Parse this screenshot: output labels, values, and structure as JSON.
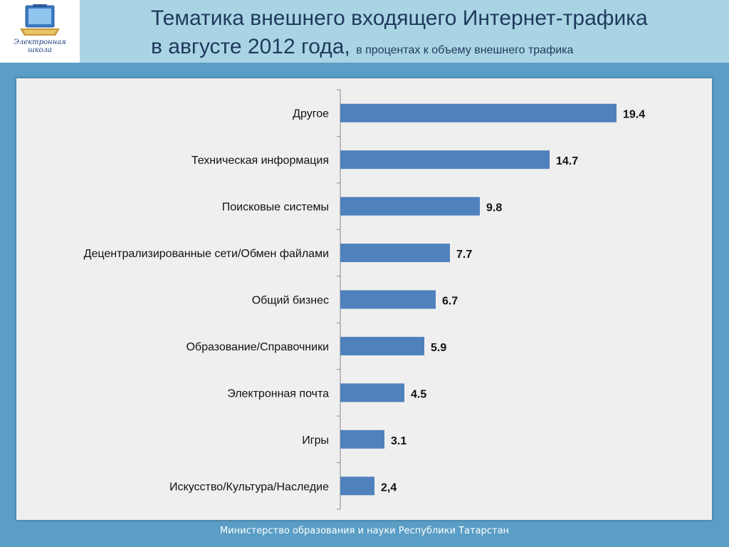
{
  "header": {
    "title_line1": "Тематика внешнего входящего Интернет-трафика",
    "title_line2": "в августе 2012 года,",
    "subtitle": "в процентах к объему внешнего трафика"
  },
  "logo": {
    "text_line1": "Электронная",
    "text_line2": "школа",
    "icon": "briefcase-laptop-icon"
  },
  "chart_data": {
    "type": "bar",
    "orientation": "horizontal",
    "categories": [
      "Другое",
      "Техническая информация",
      "Поисковые системы",
      "Децентрализированные сети/Обмен файлами",
      "Общий бизнес",
      "Образование/Справочники",
      "Электронная почта",
      "Игры",
      "Искусство/Культура/Наследие"
    ],
    "values": [
      19.4,
      14.7,
      9.8,
      7.7,
      6.7,
      5.9,
      4.5,
      3.1,
      2.4
    ],
    "value_labels": [
      "19.4",
      "14.7",
      "9.8",
      "7.7",
      "6.7",
      "5.9",
      "4.5",
      "3.1",
      "2,4"
    ],
    "xlim": [
      0,
      20
    ],
    "grid": false,
    "legend": "none",
    "bar_color": "#4f81bd"
  },
  "footer": {
    "text": "Министерство образования и науки  Республики Татарстан"
  }
}
